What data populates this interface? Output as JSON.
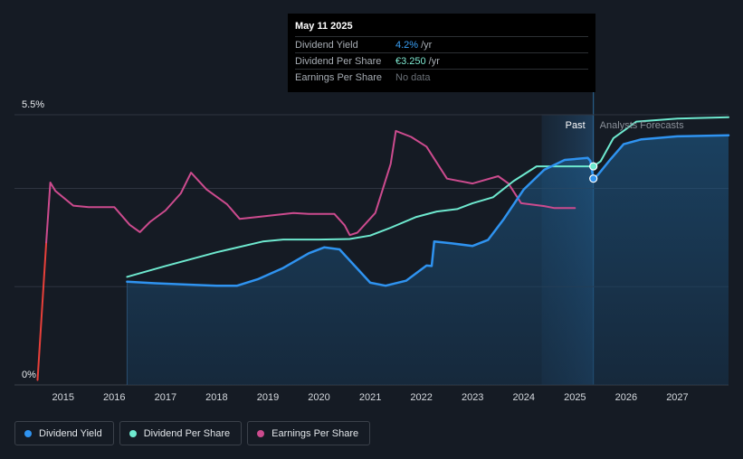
{
  "tooltip": {
    "date": "May 11 2025",
    "rows": [
      {
        "label": "Dividend Yield",
        "value": "4.2%",
        "unit": "/yr",
        "color": "#3aa0f5"
      },
      {
        "label": "Dividend Per Share",
        "value": "€3.250",
        "unit": "/yr",
        "color": "#7ee8d0"
      },
      {
        "label": "Earnings Per Share",
        "value": "No data",
        "unit": "",
        "color": "#6b7178"
      }
    ]
  },
  "legend": [
    {
      "label": "Dividend Yield",
      "color": "#2f93f0"
    },
    {
      "label": "Dividend Per Share",
      "color": "#6ee9cf"
    },
    {
      "label": "Earnings Per Share",
      "color": "#cc4b8e"
    }
  ],
  "chart_data": {
    "type": "line",
    "x_ticks": [
      2015,
      2016,
      2017,
      2018,
      2019,
      2020,
      2021,
      2022,
      2023,
      2024,
      2025,
      2026,
      2027
    ],
    "xlim": [
      2014.05,
      2028.0
    ],
    "y_tick_labels": [
      {
        "value": 5.5,
        "label": "5.5%"
      },
      {
        "value": 0,
        "label": "0%"
      }
    ],
    "ylim": [
      0,
      5.5
    ],
    "past_label": "Past",
    "forecast_label": "Analysts Forecasts",
    "past_start": 2024.35,
    "past_end": 2025.36,
    "colors": {
      "yield": "#2f93f0",
      "dps": "#6ee9cf",
      "eps": "#cc4b8e",
      "eps_negative": "#e8403a",
      "grid": "#2f3540",
      "axis": "#3b414a"
    },
    "series": [
      {
        "key": "yield",
        "name": "Dividend Yield",
        "points": [
          [
            2016.25,
            2.1
          ],
          [
            2016.8,
            2.07
          ],
          [
            2017.5,
            2.04
          ],
          [
            2018.0,
            2.02
          ],
          [
            2018.4,
            2.02
          ],
          [
            2018.8,
            2.15
          ],
          [
            2019.3,
            2.38
          ],
          [
            2019.8,
            2.68
          ],
          [
            2020.1,
            2.8
          ],
          [
            2020.4,
            2.76
          ],
          [
            2020.7,
            2.42
          ],
          [
            2021.0,
            2.08
          ],
          [
            2021.3,
            2.02
          ],
          [
            2021.7,
            2.12
          ],
          [
            2022.1,
            2.43
          ],
          [
            2022.2,
            2.42
          ],
          [
            2022.25,
            2.92
          ],
          [
            2022.6,
            2.88
          ],
          [
            2023.0,
            2.83
          ],
          [
            2023.3,
            2.95
          ],
          [
            2023.6,
            3.36
          ],
          [
            2024.0,
            3.98
          ],
          [
            2024.4,
            4.38
          ],
          [
            2024.8,
            4.58
          ],
          [
            2025.25,
            4.62
          ],
          [
            2025.3,
            4.56
          ],
          [
            2025.36,
            4.2
          ],
          [
            2025.45,
            4.28
          ],
          [
            2025.7,
            4.6
          ],
          [
            2025.95,
            4.9
          ],
          [
            2026.3,
            5.0
          ],
          [
            2027.0,
            5.06
          ],
          [
            2028.0,
            5.08
          ]
        ]
      },
      {
        "key": "dps",
        "name": "Dividend Per Share",
        "points": [
          [
            2016.25,
            2.2
          ],
          [
            2017.0,
            2.42
          ],
          [
            2018.0,
            2.7
          ],
          [
            2018.9,
            2.92
          ],
          [
            2019.3,
            2.96
          ],
          [
            2020.0,
            2.96
          ],
          [
            2020.6,
            2.97
          ],
          [
            2021.0,
            3.04
          ],
          [
            2021.4,
            3.2
          ],
          [
            2021.9,
            3.42
          ],
          [
            2022.3,
            3.53
          ],
          [
            2022.7,
            3.58
          ],
          [
            2023.0,
            3.7
          ],
          [
            2023.4,
            3.82
          ],
          [
            2023.8,
            4.15
          ],
          [
            2024.25,
            4.45
          ],
          [
            2025.36,
            4.45
          ],
          [
            2025.5,
            4.55
          ],
          [
            2025.75,
            5.02
          ],
          [
            2026.2,
            5.36
          ],
          [
            2027.0,
            5.42
          ],
          [
            2028.0,
            5.45
          ]
        ]
      },
      {
        "key": "eps",
        "name": "Earnings Per Share",
        "points": [
          [
            2014.5,
            0.1
          ],
          [
            2014.67,
            2.9
          ],
          [
            2014.75,
            4.12
          ],
          [
            2014.85,
            3.95
          ],
          [
            2015.2,
            3.65
          ],
          [
            2015.5,
            3.62
          ],
          [
            2016.0,
            3.62
          ],
          [
            2016.3,
            3.26
          ],
          [
            2016.5,
            3.11
          ],
          [
            2016.7,
            3.32
          ],
          [
            2017.0,
            3.55
          ],
          [
            2017.3,
            3.9
          ],
          [
            2017.5,
            4.32
          ],
          [
            2017.8,
            3.98
          ],
          [
            2018.2,
            3.68
          ],
          [
            2018.45,
            3.38
          ],
          [
            2018.8,
            3.42
          ],
          [
            2019.5,
            3.5
          ],
          [
            2019.8,
            3.48
          ],
          [
            2020.0,
            3.48
          ],
          [
            2020.3,
            3.48
          ],
          [
            2020.5,
            3.25
          ],
          [
            2020.6,
            3.05
          ],
          [
            2020.75,
            3.1
          ],
          [
            2021.1,
            3.5
          ],
          [
            2021.4,
            4.5
          ],
          [
            2021.5,
            5.17
          ],
          [
            2021.8,
            5.05
          ],
          [
            2022.1,
            4.85
          ],
          [
            2022.5,
            4.2
          ],
          [
            2023.0,
            4.1
          ],
          [
            2023.5,
            4.25
          ],
          [
            2023.7,
            4.1
          ],
          [
            2023.95,
            3.7
          ],
          [
            2024.4,
            3.64
          ],
          [
            2024.6,
            3.6
          ],
          [
            2025.0,
            3.6
          ]
        ]
      }
    ]
  }
}
